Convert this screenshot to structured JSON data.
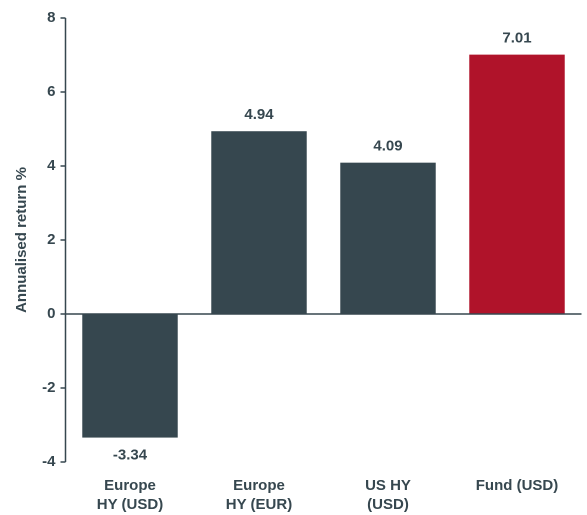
{
  "chart_data": {
    "type": "bar",
    "y_label": "Annualised return %",
    "categories": [
      "Europe\nHY (USD)",
      "Europe\nHY (EUR)",
      "US HY\n(USD)",
      "Fund (USD)"
    ],
    "values": [
      -3.34,
      4.94,
      4.09,
      7.01
    ],
    "colors": [
      "#36474f",
      "#36474f",
      "#36474f",
      "#b0132a"
    ],
    "ylim": [
      -4,
      8
    ],
    "yticks": [
      -4,
      -2,
      0,
      2,
      4,
      6,
      8
    ],
    "grid": false
  }
}
